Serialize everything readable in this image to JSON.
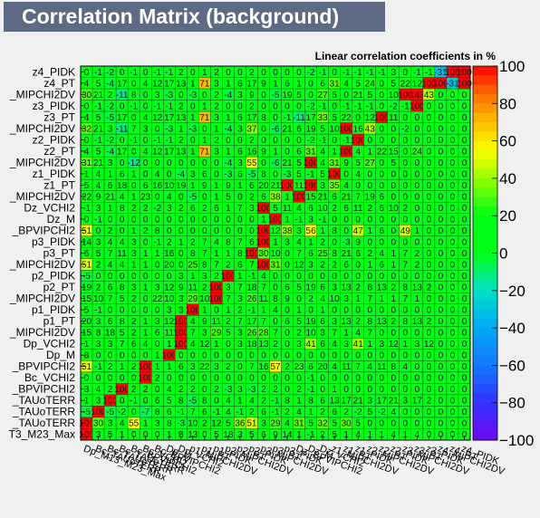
{
  "window": {
    "title": "Correlation Matrix (background)"
  },
  "chart_data": {
    "type": "heatmap",
    "title": "Correlation Matrix (background)",
    "subtitle": "Linear correlation coefficients in %",
    "row_labels": [
      "z4_PIDK",
      "z4_PT",
      "_MIPCHI2DV",
      "z3_PIDK",
      "z3_PT",
      "_MIPCHI2DV",
      "z2_PIDK",
      "z2_PT",
      "_MIPCHI2DV",
      "z1_PIDK",
      "z1_PT",
      "_MIPCHI2DV",
      "Dz_VCHI2",
      "Dz_M",
      "_BPVIPCHI2",
      "p3_PIDK",
      "p3_PT",
      "_MIPCHI2DV",
      "p2_PIDK",
      "p2_PT",
      "_MIPCHI2DV",
      "p1_PIDK",
      "p1_PT",
      "_MIPCHI2DV",
      "Dp_VCHI2",
      "Dp_M",
      "_BPVIPCHI2",
      "Bc_VCHI2",
      "_BPVIPCHI2",
      "_TAUoTERR",
      "_TAUoTERR",
      "_TAUoTERR",
      "T3_M23_Max"
    ],
    "col_labels": [
      "Dp_M13_M23_Max",
      "Bc_TAUoTERR",
      "Bc_TAUoTERR",
      "Bc_TAUoTERR",
      "Bc_BPVIPCHI2",
      "Bc_VCHI2",
      "Bc_BPVIPCHI2",
      "Dp_M",
      "Dp_VCHI2",
      "p1_MIPCHI2DV",
      "p1_PT",
      "p1_PIDK",
      "p2_MIPCHI2DV",
      "p2_PT",
      "p2_PIDK",
      "p3_MIPCHI2DV",
      "p3_PT",
      "p3_PIDK",
      "Dz_BPVIPCHI2",
      "Dz_M",
      "Dz_VCHI2",
      "z1_MIPCHI2DV",
      "z1_PT",
      "z1_PIDK",
      "z2_MIPCHI2DV",
      "z2_PT",
      "z2_PIDK",
      "z3_MIPCHI2DV",
      "z3_PT",
      "z3_PIDK",
      "z4_MIPCHI2DV",
      "z4_PT",
      "z4_PIDK"
    ],
    "values": [
      [
        0,
        -1,
        -2,
        0,
        -1,
        0,
        -1,
        -1,
        2,
        0,
        1,
        2,
        0,
        0,
        2,
        0,
        0,
        0,
        0,
        -2,
        -1,
        0,
        -1,
        -1,
        -1,
        -1,
        3,
        0,
        -1,
        -1,
        -31,
        100,
        100
      ],
      [
        4,
        5,
        -4,
        17,
        0,
        4,
        12,
        17,
        13,
        1,
        71,
        3,
        1,
        6,
        17,
        9,
        1,
        6,
        1,
        0,
        6,
        31,
        4,
        5,
        24,
        0,
        5,
        22,
        12,
        100,
        100,
        -31,
        100
      ],
      [
        30,
        21,
        2,
        -11,
        8,
        0,
        3,
        -3,
        0,
        -3,
        0,
        2,
        -4,
        3,
        9,
        0,
        -5,
        19,
        5,
        0,
        27,
        5,
        0,
        21,
        5,
        0,
        10,
        100,
        143,
        43,
        0,
        0,
        0
      ],
      [
        0,
        -1,
        -2,
        0,
        -1,
        0,
        -1,
        -1,
        2,
        0,
        1,
        2,
        0,
        0,
        2,
        0,
        0,
        0,
        0,
        -2,
        -1,
        0,
        -1,
        -1,
        -1,
        0,
        -2,
        -1,
        100,
        0,
        0,
        0,
        0
      ],
      [
        4,
        5,
        -5,
        17,
        0,
        4,
        12,
        17,
        13,
        1,
        71,
        3,
        1,
        6,
        17,
        8,
        0,
        -1,
        -11,
        17,
        33,
        5,
        22,
        0,
        12,
        100,
        11,
        0,
        0,
        0,
        0,
        0,
        0
      ],
      [
        32,
        21,
        3,
        -11,
        7,
        3,
        0,
        -3,
        1,
        -3,
        0,
        1,
        -4,
        3,
        37,
        0,
        -6,
        21,
        6,
        19,
        5,
        10,
        100,
        16,
        43,
        0,
        0,
        -2,
        0,
        0,
        0,
        0,
        0
      ],
      [
        0,
        -1,
        -2,
        0,
        -1,
        0,
        -1,
        -1,
        2,
        0,
        1,
        2,
        0,
        0,
        2,
        0,
        0,
        0,
        0,
        -2,
        -1,
        0,
        -1,
        100,
        0,
        0,
        0,
        0,
        0,
        0,
        0,
        0,
        0
      ],
      [
        4,
        5,
        -4,
        17,
        0,
        4,
        12,
        17,
        13,
        1,
        71,
        3,
        1,
        6,
        16,
        9,
        1,
        0,
        6,
        31,
        4,
        1,
        100,
        4,
        1,
        22,
        15,
        0,
        24,
        0,
        0,
        0,
        0
      ],
      [
        31,
        21,
        3,
        0,
        -12,
        0,
        0,
        0,
        0,
        0,
        0,
        0,
        -4,
        3,
        55,
        0,
        -6,
        21,
        5,
        100,
        4,
        31,
        9,
        5,
        27,
        0,
        5,
        0,
        0,
        0,
        0,
        0,
        0
      ],
      [
        1,
        4,
        1,
        6,
        1,
        0,
        4,
        0,
        -4,
        3,
        6,
        0,
        -3,
        6,
        -5,
        8,
        0,
        -3,
        5,
        -1,
        5,
        100,
        0,
        4,
        0,
        0,
        0,
        0,
        0,
        0,
        0,
        0,
        0
      ],
      [
        5,
        4,
        6,
        18,
        0,
        6,
        16,
        10,
        19,
        1,
        9,
        1,
        9,
        1,
        6,
        20,
        21,
        100,
        11,
        100,
        3,
        35,
        4,
        0,
        0,
        0,
        0,
        0,
        0,
        0,
        0,
        0,
        0
      ],
      [
        22,
        9,
        21,
        4,
        1,
        23,
        0,
        4,
        0,
        -5,
        0,
        1,
        5,
        0,
        2,
        6,
        38,
        1,
        100,
        15,
        21,
        6,
        21,
        7,
        19,
        6,
        0,
        0,
        0,
        0,
        0,
        0,
        0
      ],
      [
        -1,
        3,
        1,
        8,
        2,
        2,
        -2,
        3,
        2,
        6,
        2,
        6,
        1,
        7,
        3,
        100,
        5,
        11,
        4,
        6,
        10,
        2,
        6,
        11,
        2,
        6,
        10,
        2,
        0,
        0,
        0,
        0,
        0
      ],
      [
        0,
        -1,
        0,
        0,
        0,
        0,
        0,
        0,
        0,
        0,
        0,
        0,
        0,
        0,
        0,
        1,
        100,
        1,
        -1,
        3,
        -1,
        0,
        0,
        0,
        0,
        0,
        0,
        0,
        0,
        0,
        0,
        0,
        0
      ],
      [
        51,
        0,
        2,
        0,
        1,
        2,
        8,
        0,
        0,
        0,
        0,
        0,
        0,
        0,
        0,
        100,
        12,
        38,
        3,
        56,
        1,
        8,
        0,
        47,
        1,
        6,
        0,
        49,
        1,
        0,
        0,
        0,
        0
      ],
      [
        14,
        3,
        4,
        4,
        3,
        0,
        -1,
        2,
        1,
        2,
        7,
        4,
        8,
        7,
        6,
        100,
        1,
        3,
        4,
        1,
        2,
        0,
        -3,
        9,
        0,
        0,
        0,
        0,
        0,
        0,
        0,
        0,
        0
      ],
      [
        6,
        5,
        7,
        11,
        3,
        1,
        1,
        16,
        0,
        8,
        7,
        1,
        1,
        8,
        100,
        30,
        10,
        0,
        7,
        6,
        25,
        8,
        21,
        6,
        2,
        4,
        1,
        7,
        2,
        0,
        0,
        0,
        0
      ],
      [
        51,
        2,
        4,
        4,
        1,
        1,
        0,
        20,
        0,
        25,
        8,
        7,
        2,
        6,
        7,
        100,
        31,
        0,
        12,
        3,
        2,
        2,
        6,
        0,
        1,
        6,
        1,
        7,
        2,
        0,
        0,
        0,
        0
      ],
      [
        -5,
        0,
        0,
        0,
        0,
        0,
        0,
        0,
        3,
        1,
        3,
        2,
        100,
        1,
        -1,
        4,
        0,
        0,
        0,
        0,
        0,
        0,
        0,
        0,
        0,
        0,
        0,
        0,
        0,
        0,
        0,
        0,
        0
      ],
      [
        19,
        2,
        6,
        8,
        3,
        1,
        3,
        12,
        9,
        11,
        2,
        100,
        3,
        7,
        18,
        7,
        0,
        6,
        5,
        19,
        6,
        3,
        13,
        2,
        8,
        13,
        2,
        8,
        13,
        2,
        0,
        0,
        0
      ],
      [
        15,
        10,
        7,
        5,
        2,
        0,
        22,
        10,
        3,
        29,
        10,
        100,
        7,
        3,
        26,
        11,
        8,
        9,
        0,
        2,
        4,
        10,
        3,
        1,
        7,
        1,
        1,
        7,
        1,
        0,
        0,
        0,
        0
      ],
      [
        5,
        -1,
        0,
        0,
        0,
        0,
        0,
        3,
        3,
        100,
        1,
        0,
        1,
        2,
        -1,
        1,
        4,
        0,
        1,
        0,
        1,
        0,
        0,
        0,
        0,
        0,
        0,
        0,
        0,
        0,
        0,
        0,
        0
      ],
      [
        20,
        3,
        6,
        8,
        2,
        1,
        3,
        12,
        100,
        4,
        9,
        11,
        2,
        7,
        17,
        7,
        0,
        6,
        5,
        19,
        6,
        3,
        13,
        2,
        8,
        13,
        2,
        8,
        13,
        2,
        0,
        0,
        0
      ],
      [
        15,
        8,
        18,
        5,
        2,
        1,
        6,
        11,
        100,
        7,
        3,
        29,
        5,
        3,
        26,
        28,
        7,
        0,
        2,
        10,
        3,
        7,
        1,
        4,
        7,
        0,
        0,
        0,
        0,
        0,
        0,
        0,
        0
      ],
      [
        1,
        3,
        3,
        7,
        6,
        4,
        0,
        1,
        100,
        4,
        12,
        1,
        0,
        3,
        18,
        13,
        2,
        0,
        3,
        41,
        6,
        4,
        3,
        41,
        1,
        3,
        12,
        1,
        3,
        12,
        0,
        0,
        0
      ],
      [
        8,
        0,
        0,
        0,
        0,
        0,
        1,
        100,
        0,
        0,
        0,
        0,
        0,
        0,
        0,
        0,
        0,
        0,
        0,
        0,
        0,
        0,
        0,
        0,
        0,
        0,
        0,
        0,
        0,
        0,
        0,
        0,
        0
      ],
      [
        51,
        -1,
        2,
        1,
        2,
        100,
        1,
        1,
        6,
        3,
        22,
        3,
        2,
        0,
        7,
        16,
        57,
        2,
        23,
        6,
        20,
        4,
        11,
        7,
        4,
        11,
        8,
        4,
        0,
        0,
        0,
        0,
        0
      ],
      [
        0,
        0,
        0,
        0,
        0,
        100,
        2,
        0,
        0,
        0,
        0,
        0,
        0,
        0,
        0,
        0,
        0,
        0,
        0,
        -1,
        0,
        0,
        0,
        0,
        0,
        0,
        0,
        0,
        0,
        0,
        0,
        0,
        0
      ],
      [
        3,
        4,
        2,
        100,
        2,
        2,
        0,
        4,
        2,
        2,
        0,
        2,
        -3,
        3,
        -3,
        2,
        2,
        0,
        2,
        -1,
        0,
        1,
        0,
        0,
        0,
        0,
        0,
        0,
        0,
        0,
        0,
        0,
        0
      ],
      [
        1,
        3,
        100,
        0,
        -1,
        0,
        6,
        5,
        8,
        -5,
        8,
        0,
        4,
        1,
        4,
        2,
        -1,
        8,
        1,
        8,
        6,
        13,
        17,
        21,
        3,
        17,
        21,
        3,
        17,
        2,
        0,
        0,
        0
      ],
      [
        -5,
        100,
        -5,
        -2,
        0,
        -7,
        8,
        6,
        -1,
        7,
        6,
        -1,
        4,
        -1,
        2,
        6,
        -1,
        2,
        4,
        1,
        2,
        6,
        2,
        -2,
        5,
        -2,
        4,
        0,
        0,
        0,
        0,
        0,
        0
      ],
      [
        100,
        30,
        3,
        4,
        55,
        1,
        3,
        8,
        -3,
        10,
        2,
        12,
        5,
        36,
        51,
        3,
        29,
        4,
        31,
        5,
        32,
        5,
        30,
        5,
        0,
        0,
        0,
        0,
        0,
        0,
        0,
        0,
        0
      ],
      [
        100,
        3,
        5,
        1,
        0,
        0,
        0,
        1,
        8,
        13,
        0,
        5,
        18,
        3,
        5,
        6,
        9,
        14,
        1,
        -1,
        2,
        5,
        1,
        4,
        1,
        1,
        4,
        1,
        4,
        0,
        0,
        0,
        0
      ]
    ],
    "zrange": [
      -100,
      100
    ],
    "colorbar_ticks": [
      "100",
      "80",
      "60",
      "40",
      "20",
      "0",
      "−20",
      "−40",
      "−60",
      "−80",
      "−100"
    ],
    "legend_placement": "right",
    "grid": true
  }
}
